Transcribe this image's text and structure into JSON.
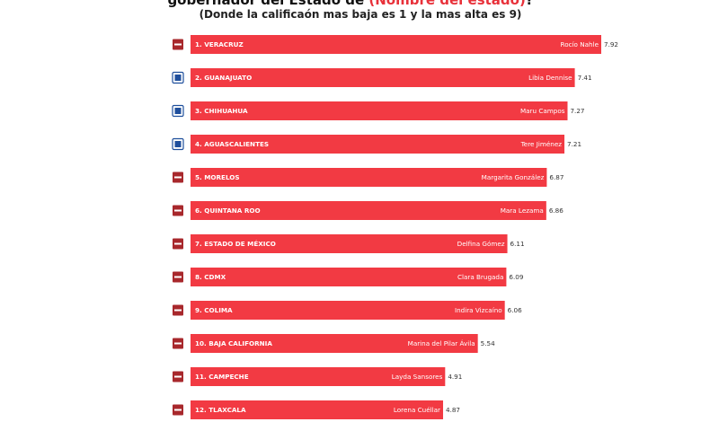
{
  "colors": {
    "bar": "#f23a43",
    "highlight": "#e8313a",
    "morena_logo": "#a8282c",
    "pan_logo": "#1f4f9c"
  },
  "header": {
    "title_prefix": "gobernador del Estado de ",
    "title_highlight": "(Nombre del estado)",
    "title_suffix": "?",
    "subtitle": "(Donde la calificaón mas baja es 1 y la mas alta es 9)"
  },
  "chart_data": {
    "type": "bar",
    "orientation": "horizontal",
    "title": "gobernador del Estado de (Nombre del estado)?",
    "subtitle": "(Donde la calificaón mas baja es 1 y la mas alta es 9)",
    "categories": [
      "1. VERACRUZ",
      "2. GUANAJUATO",
      "3. CHIHUAHUA",
      "4. AGUASCALIENTES",
      "5. MORELOS",
      "6. QUINTANA ROO",
      "7. ESTADO DE MÉXICO",
      "8. CDMX",
      "9. COLIMA",
      "10. BAJA CALIFORNIA",
      "11. CAMPECHE",
      "12. TLAXCALA"
    ],
    "governors": [
      "Rocío Nahle",
      "Libia Dennise",
      "Maru Campos",
      "Tere Jiménez",
      "Margarita González",
      "Mara Lezama",
      "Delfina Gómez",
      "Clara Brugada",
      "Indira Vizcaíno",
      "Marina del Pilar Ávila",
      "Layda Sansores",
      "Lorena Cuéllar"
    ],
    "parties": [
      "morena",
      "pan",
      "pan",
      "pan",
      "morena",
      "morena",
      "morena",
      "morena",
      "morena",
      "morena",
      "morena",
      "morena"
    ],
    "values": [
      7.92,
      7.41,
      7.27,
      7.21,
      6.87,
      6.86,
      6.11,
      6.09,
      6.06,
      5.54,
      4.91,
      4.87
    ],
    "labels": [
      "7.92",
      "7.41",
      "7.27",
      "7.21",
      "6.87",
      "6.86",
      "6.11",
      "6.09",
      "6.06",
      "5.54",
      "4.91",
      "4.87"
    ],
    "xlim": [
      0,
      7.92
    ],
    "grid": false,
    "legend": "none"
  }
}
